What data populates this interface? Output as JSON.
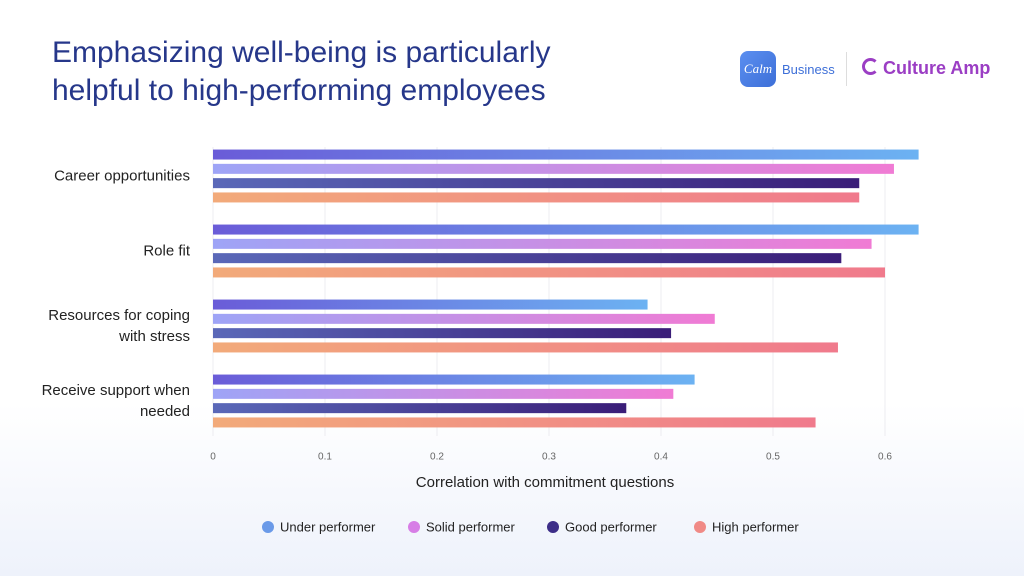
{
  "logos": [
    "Calm",
    "Business",
    "Culture Amp"
  ],
  "chart_data": {
    "type": "hbar",
    "title": "Emphasizing well-being is particularly helpful to high-performing employees",
    "x_label": "Correlation with commitment questions",
    "categories": [
      "Career opportunities",
      "Role fit",
      "Resources for coping with stress",
      "Receive support when needed"
    ],
    "series": [
      {
        "name": "Under performer",
        "color": "#6a9ae8",
        "gradient": [
          "#6a5cd8",
          "#6cb2f2"
        ],
        "values": [
          0.63,
          0.63,
          0.388,
          0.43
        ]
      },
      {
        "name": "Solid performer",
        "color": "#d77ee6",
        "gradient": [
          "#9ea4f6",
          "#f07bd4"
        ],
        "values": [
          0.608,
          0.588,
          0.448,
          0.411
        ]
      },
      {
        "name": "Good performer",
        "color": "#3d2e88",
        "gradient": [
          "#5a68b8",
          "#3a1d78"
        ],
        "values": [
          0.577,
          0.561,
          0.409,
          0.369
        ]
      },
      {
        "name": "High performer",
        "color": "#f08a86",
        "gradient": [
          "#f2aa7a",
          "#f07a8c"
        ],
        "values": [
          0.577,
          0.6,
          0.558,
          0.538
        ]
      }
    ],
    "xlim": [
      0,
      0.65
    ],
    "xticks": [
      0,
      0.1,
      0.2,
      0.3,
      0.4,
      0.5,
      0.6
    ],
    "grid": true
  }
}
